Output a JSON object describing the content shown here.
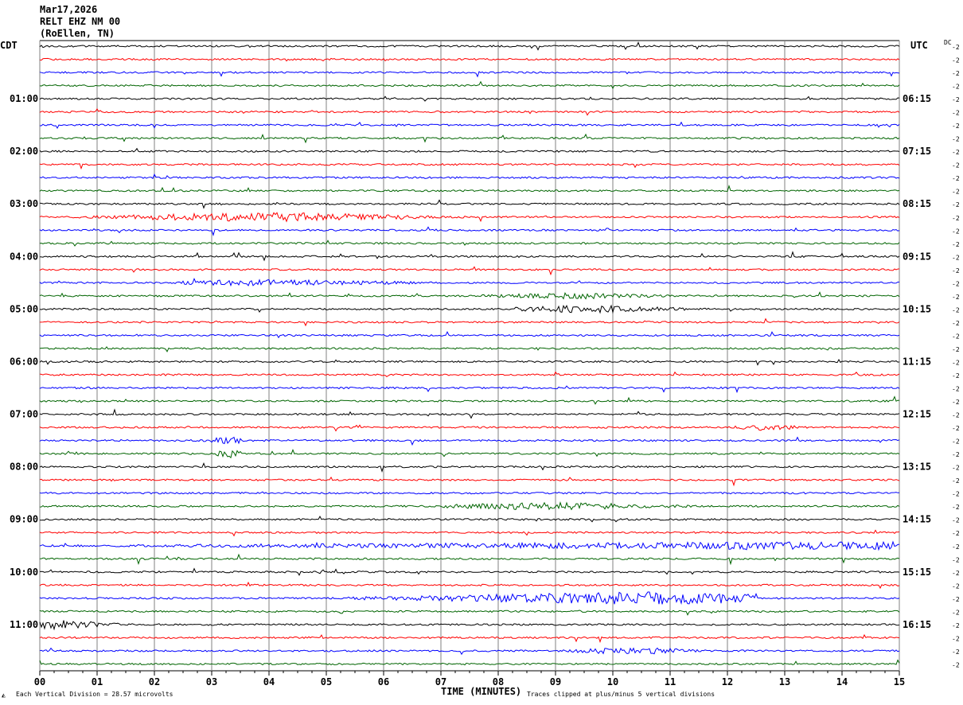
{
  "header": {
    "date": "Mar17,2026",
    "station": "RELT EHZ NM 00",
    "location": "(RoEllen, TN)"
  },
  "left_tz": "CDT",
  "right_tz": "UTC",
  "dc_label": "DC",
  "colors": {
    "trace_cycle": [
      "#000000",
      "#ff0000",
      "#0000ff",
      "#006400"
    ],
    "grid": "#808080"
  },
  "chart_data": {
    "type": "line",
    "title": "",
    "xlabel": "TIME (MINUTES)",
    "ylabel": "",
    "xlim": [
      0,
      15
    ],
    "x_ticks": [
      "00",
      "01",
      "02",
      "03",
      "04",
      "05",
      "06",
      "07",
      "08",
      "09",
      "10",
      "11",
      "12",
      "13",
      "14",
      "15"
    ],
    "left_hour_labels": [
      "01:00",
      "02:00",
      "03:00",
      "04:00",
      "05:00",
      "06:00",
      "07:00",
      "08:00",
      "09:00",
      "10:00",
      "11:00"
    ],
    "right_hour_labels": [
      "06:15",
      "07:15",
      "08:15",
      "09:15",
      "10:15",
      "11:15",
      "12:15",
      "13:15",
      "14:15",
      "15:15",
      "16:15"
    ],
    "trace_count": 48,
    "trace_right_label": "-2",
    "grid": true,
    "events": [
      {
        "trace": 13,
        "start_min": 0.5,
        "end_min": 7.5,
        "amplitude": 5,
        "peak_min": 4.0
      },
      {
        "trace": 18,
        "start_min": 2.5,
        "end_min": 7.0,
        "amplitude": 3,
        "peak_min": 4.0
      },
      {
        "trace": 19,
        "start_min": 7.5,
        "end_min": 11.0,
        "amplitude": 3,
        "peak_min": 9.3
      },
      {
        "trace": 20,
        "start_min": 8.3,
        "end_min": 11.5,
        "amplitude": 4,
        "peak_min": 9.6
      },
      {
        "trace": 29,
        "start_min": 12.0,
        "end_min": 13.2,
        "amplitude": 3,
        "peak_min": 12.7
      },
      {
        "trace": 30,
        "start_min": 2.8,
        "end_min": 3.5,
        "amplitude": 4,
        "peak_min": 3.3
      },
      {
        "trace": 31,
        "start_min": 3.0,
        "end_min": 3.6,
        "amplitude": 5,
        "peak_min": 3.3
      },
      {
        "trace": 35,
        "start_min": 7.0,
        "end_min": 11.5,
        "amplitude": 4,
        "peak_min": 8.9
      },
      {
        "trace": 38,
        "start_min": 0.0,
        "end_min": 15.0,
        "amplitude": 4,
        "peak_min": 14.5
      },
      {
        "trace": 42,
        "start_min": 5.0,
        "end_min": 12.5,
        "amplitude": 7,
        "peak_min": 10.5
      },
      {
        "trace": 44,
        "start_min": 0.0,
        "end_min": 1.5,
        "amplitude": 5,
        "peak_min": 0.3
      },
      {
        "trace": 46,
        "start_min": 9.0,
        "end_min": 11.5,
        "amplitude": 4,
        "peak_min": 10.3
      }
    ]
  },
  "footer": {
    "division": "Each Vertical Division =   28.57 microvolts",
    "clip": "Traces clipped at plus/minus 5 vertical divisions"
  }
}
